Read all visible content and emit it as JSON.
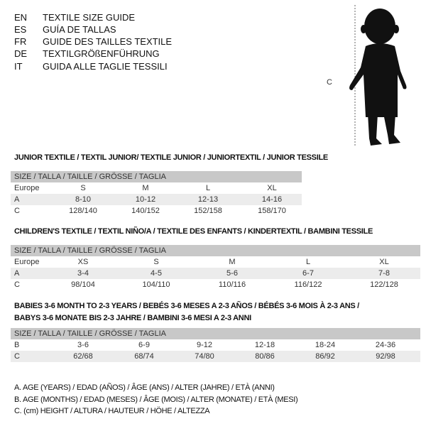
{
  "languages": [
    {
      "code": "EN",
      "title": "TEXTILE SIZE GUIDE"
    },
    {
      "code": "ES",
      "title": "GUÍA DE TALLAS"
    },
    {
      "code": "FR",
      "title": "GUIDE DES TAILLES TEXTILE"
    },
    {
      "code": "DE",
      "title": "TEXTILGRÖßENFÜHRUNG"
    },
    {
      "code": "IT",
      "title": "GUIDA ALLE TAGLIE TESSILI"
    }
  ],
  "figure": {
    "label": "C"
  },
  "size_header": "SIZE / TALLA / TAILLE / GRÖSSE / TAGLIA",
  "tables": [
    {
      "title": "JUNIOR TEXTILE / TEXTIL JUNIOR/ TEXTILE JUNIOR / JUNIORTEXTIL / JUNIOR TESSILE",
      "rows": [
        {
          "label": "Europe",
          "cells": [
            "S",
            "M",
            "L",
            "XL"
          ]
        },
        {
          "label": "A",
          "cells": [
            "8-10",
            "10-12",
            "12-13",
            "14-16"
          ]
        },
        {
          "label": "C",
          "cells": [
            "128/140",
            "140/152",
            "152/158",
            "158/170"
          ]
        }
      ]
    },
    {
      "title": "CHILDREN'S TEXTILE / TEXTIL NIÑO/A / TEXTILE DES ENFANTS / KINDERTEXTIL / BAMBINI TESSILE",
      "rows": [
        {
          "label": "Europe",
          "cells": [
            "XS",
            "S",
            "M",
            "L",
            "XL"
          ]
        },
        {
          "label": "A",
          "cells": [
            "3-4",
            "4-5",
            "5-6",
            "6-7",
            "7-8"
          ]
        },
        {
          "label": "C",
          "cells": [
            "98/104",
            "104/110",
            "110/116",
            "116/122",
            "122/128"
          ]
        }
      ]
    },
    {
      "title": "BABIES 3-6 MONTH TO 2-3 YEARS / BEBÉS 3-6 MESES A 2-3 AÑOS / BÉBÉS 3-6 MOIS À 2-3 ANS /",
      "title2": "BABYS 3-6 MONATE BIS 2-3 JAHRE / BAMBINI 3-6 MESI A 2-3 ANNI",
      "rows": [
        {
          "label": "B",
          "cells": [
            "3-6",
            "6-9",
            "9-12",
            "12-18",
            "18-24",
            "24-36"
          ]
        },
        {
          "label": "C",
          "cells": [
            "62/68",
            "68/74",
            "74/80",
            "80/86",
            "86/92",
            "92/98"
          ]
        }
      ]
    }
  ],
  "legend": [
    "A. AGE (YEARS) / EDAD (AÑOS) / ÂGE (ANS) / ALTER (JAHRE) / ETÀ (ANNI)",
    "B. AGE (MONTHS) / EDAD (MESES) / ÂGE (MOIS) / ALTER (MONATE) / ETÀ (MESI)",
    "C. (cm) HEIGHT / ALTURA / HAUTEUR / HÖHE / ALTEZZA"
  ]
}
